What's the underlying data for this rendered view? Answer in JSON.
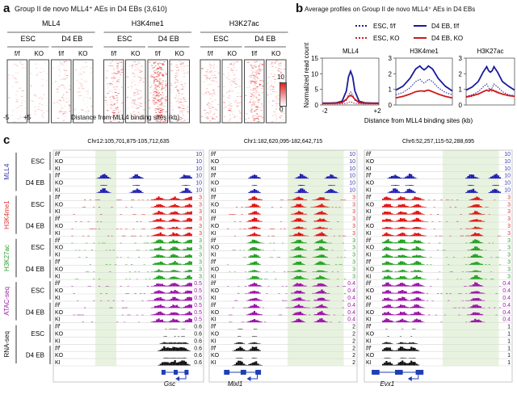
{
  "panel_a": {
    "letter": "a",
    "title": "Group II de novo MLL4⁺ AEs in D4 EBs (3,610)",
    "marks": [
      {
        "name": "MLL4",
        "stages": [
          {
            "name": "ESC",
            "genotypes": [
              "f/f",
              "KO"
            ]
          },
          {
            "name": "D4 EB",
            "genotypes": [
              "f/f",
              "KO"
            ]
          }
        ]
      },
      {
        "name": "H3K4me1",
        "stages": [
          {
            "name": "ESC",
            "genotypes": [
              "f/f",
              "KO"
            ]
          },
          {
            "name": "D4 EB",
            "genotypes": [
              "f/f",
              "KO"
            ]
          }
        ]
      },
      {
        "name": "H3K27ac",
        "stages": [
          {
            "name": "ESC",
            "genotypes": [
              "f/f",
              "KO"
            ]
          },
          {
            "name": "D4 EB",
            "genotypes": [
              "f/f",
              "KO"
            ]
          }
        ]
      }
    ],
    "heatmap_intensity": [
      [
        0.08,
        0.06,
        0.22,
        0.07
      ],
      [
        0.45,
        0.3,
        0.85,
        0.35
      ],
      [
        0.3,
        0.25,
        0.6,
        0.3
      ]
    ],
    "x_left": "-5",
    "x_right": "+5",
    "xlabel": "Distance from MLL4 binding sites (kb)",
    "colorbar": {
      "max": "10",
      "min": "0",
      "color_high": "#e0201e",
      "color_low": "#ffffff"
    }
  },
  "panel_b": {
    "letter": "b",
    "title": "Average profiles on Group II de novo MLL4⁺ AEs in D4 EBs",
    "legend": [
      {
        "label": "ESC, f/f",
        "color": "#1a1a9c",
        "style": "dotted"
      },
      {
        "label": "D4 EB, f/f",
        "color": "#1a1a9c",
        "style": "solid"
      },
      {
        "label": "ESC, KO",
        "color": "#d0191b",
        "style": "dotted"
      },
      {
        "label": "D4 EB, KO",
        "color": "#d0191b",
        "style": "solid"
      }
    ],
    "ylabel": "Normalized read count",
    "xlabel": "Distance from MLL4 binding sites (kb)"
  },
  "chart_data": [
    {
      "type": "line",
      "title": "MLL4",
      "x": [
        -2,
        -1.5,
        -1,
        -0.6,
        -0.3,
        -0.15,
        0,
        0.15,
        0.3,
        0.6,
        1,
        1.5,
        2
      ],
      "series": [
        {
          "name": "ESC, f/f",
          "values": [
            0.4,
            0.4,
            0.45,
            0.6,
            1.5,
            3.2,
            4.2,
            3.2,
            1.5,
            0.6,
            0.45,
            0.4,
            0.4
          ]
        },
        {
          "name": "ESC, KO",
          "values": [
            0.3,
            0.3,
            0.3,
            0.35,
            0.5,
            0.8,
            1.0,
            0.8,
            0.5,
            0.35,
            0.3,
            0.3,
            0.3
          ]
        },
        {
          "name": "D4 EB, f/f",
          "values": [
            0.6,
            0.6,
            0.7,
            1.2,
            4.5,
            9.0,
            10.8,
            9.0,
            4.5,
            1.2,
            0.7,
            0.6,
            0.6
          ]
        },
        {
          "name": "D4 EB, KO",
          "values": [
            0.5,
            0.5,
            0.55,
            0.8,
            1.8,
            2.7,
            3.1,
            2.7,
            1.8,
            0.8,
            0.55,
            0.5,
            0.5
          ]
        }
      ],
      "xlabel": "",
      "ylabel": "Normalized read count",
      "xticklabels": [
        "-2",
        "+2"
      ],
      "yticks": [
        0,
        5,
        10,
        15
      ],
      "ylim": [
        0,
        15
      ],
      "xlim": [
        -2,
        2
      ]
    },
    {
      "type": "line",
      "title": "H3K4me1",
      "x": [
        -2,
        -1.5,
        -1,
        -0.6,
        -0.3,
        -0.15,
        0,
        0.15,
        0.3,
        0.6,
        1,
        1.5,
        2
      ],
      "series": [
        {
          "name": "ESC, f/f",
          "values": [
            0.65,
            0.8,
            1.1,
            1.5,
            1.65,
            1.5,
            1.4,
            1.5,
            1.65,
            1.5,
            1.1,
            0.8,
            0.65
          ]
        },
        {
          "name": "ESC, KO",
          "values": [
            0.45,
            0.55,
            0.7,
            0.85,
            0.9,
            0.88,
            0.85,
            0.88,
            0.95,
            0.85,
            0.7,
            0.55,
            0.45
          ]
        },
        {
          "name": "D4 EB, f/f",
          "values": [
            0.95,
            1.2,
            1.7,
            2.3,
            2.5,
            2.35,
            2.25,
            2.35,
            2.5,
            2.3,
            1.7,
            1.2,
            0.9
          ]
        },
        {
          "name": "D4 EB, KO",
          "values": [
            0.45,
            0.55,
            0.7,
            0.85,
            0.9,
            0.9,
            0.88,
            0.92,
            0.95,
            0.85,
            0.7,
            0.55,
            0.45
          ]
        }
      ],
      "yticks": [
        0,
        1,
        2,
        3
      ],
      "ylim": [
        0,
        3
      ],
      "xlim": [
        -2,
        2
      ]
    },
    {
      "type": "line",
      "title": "H3K27ac",
      "x": [
        -2,
        -1.5,
        -1,
        -0.6,
        -0.3,
        -0.15,
        0,
        0.15,
        0.3,
        0.6,
        1,
        1.5,
        2
      ],
      "series": [
        {
          "name": "ESC, f/f",
          "values": [
            0.55,
            0.65,
            0.85,
            1.15,
            1.35,
            1.1,
            0.95,
            1.1,
            1.35,
            1.15,
            0.85,
            0.65,
            0.6
          ]
        },
        {
          "name": "ESC, KO",
          "values": [
            0.5,
            0.55,
            0.7,
            0.85,
            0.95,
            0.9,
            0.85,
            0.9,
            0.95,
            0.85,
            0.7,
            0.6,
            0.55
          ]
        },
        {
          "name": "D4 EB, f/f",
          "values": [
            0.95,
            1.15,
            1.5,
            2.1,
            2.45,
            2.2,
            2.1,
            2.2,
            2.45,
            2.1,
            1.5,
            1.2,
            0.95
          ]
        },
        {
          "name": "D4 EB, KO",
          "values": [
            0.5,
            0.6,
            0.7,
            0.85,
            0.95,
            0.9,
            1.0,
            0.95,
            0.9,
            0.8,
            0.7,
            0.6,
            0.55
          ]
        }
      ],
      "yticks": [
        0,
        1,
        2,
        3
      ],
      "ylim": [
        0,
        3
      ],
      "xlim": [
        -2,
        2
      ]
    }
  ],
  "panel_c": {
    "letter": "c",
    "loci": [
      {
        "coord": "Chr12:105,701,875-105,712,635",
        "gene": "Gsc",
        "scales": [
          "10",
          "3",
          "3",
          "0.5",
          "0.6"
        ]
      },
      {
        "coord": "Chr1:182,620,095-182,642,715",
        "gene": "Mixl1",
        "scales": [
          "10",
          "3",
          "3",
          "0.4",
          "2"
        ]
      },
      {
        "coord": "Chr6:52,257,115-52,288,695",
        "gene": "Evx1",
        "scales": [
          "10",
          "3",
          "3",
          "0.4",
          "1"
        ]
      }
    ],
    "groups": [
      {
        "name": "MLL4",
        "color": "#3a3ab0"
      },
      {
        "name": "H3K4me1",
        "color": "#e03434"
      },
      {
        "name": "H3K27ac",
        "color": "#2ca02c"
      },
      {
        "name": "ATAC-seq",
        "color": "#9a1aa6"
      },
      {
        "name": "RNA-seq",
        "color": "#111111"
      }
    ],
    "stages": [
      "ESC",
      "D4 EB"
    ],
    "genotypes": [
      "f/f",
      "KO",
      "KI"
    ],
    "track_colors": [
      "#1f1fb4",
      "#e01010",
      "#22a022",
      "#9a10a6",
      "#111111"
    ]
  }
}
